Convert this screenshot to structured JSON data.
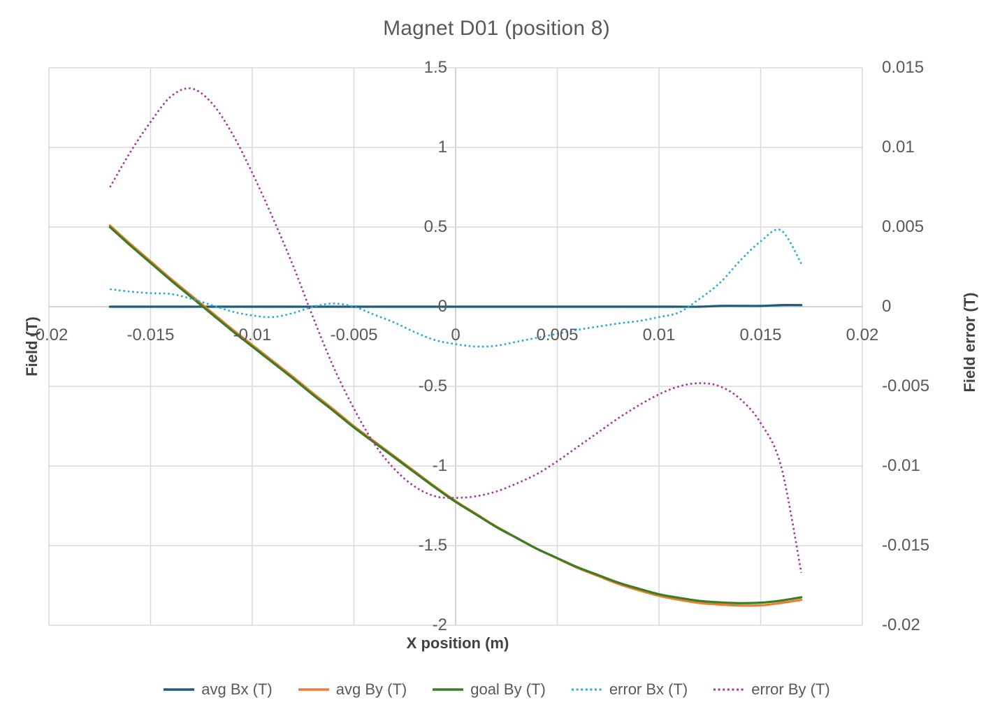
{
  "chart_data": {
    "type": "line",
    "title": "Magnet D01 (position 8)",
    "x_axis": {
      "title": "X position (m)",
      "min": -0.02,
      "max": 0.02,
      "ticks": [
        "-0.02",
        "-0.015",
        "-0.01",
        "-0.005",
        "0",
        "0.005",
        "0.01",
        "0.015",
        "0.02"
      ]
    },
    "left_axis": {
      "title": "Field (T)",
      "min": -2,
      "max": 1.5,
      "ticks": [
        "1.5",
        "1",
        "0.5",
        "0",
        "-0.5",
        "-1",
        "-1.5",
        "-2"
      ]
    },
    "right_axis": {
      "title": "Field error (T)",
      "min": -0.02,
      "max": 0.015,
      "ticks": [
        "0.015",
        "0.01",
        "0.005",
        "0",
        "-0.005",
        "-0.01",
        "-0.015",
        "-0.02"
      ]
    },
    "grid": true,
    "legend_position": "bottom",
    "colors": {
      "grid": "#D9D9D9",
      "axis": "#C6C6C6",
      "text": "#595959",
      "title": "#595959"
    },
    "x": [
      -0.017,
      -0.016,
      -0.015,
      -0.014,
      -0.013,
      -0.012,
      -0.011,
      -0.01,
      -0.009,
      -0.008,
      -0.007,
      -0.006,
      -0.005,
      -0.004,
      -0.003,
      -0.002,
      -0.001,
      0,
      0.001,
      0.002,
      0.003,
      0.004,
      0.005,
      0.006,
      0.007,
      0.008,
      0.009,
      0.01,
      0.011,
      0.012,
      0.013,
      0.014,
      0.015,
      0.016,
      0.017
    ],
    "series": [
      {
        "name": "avg Bx (T)",
        "axis": "left",
        "color": "#1F5B7D",
        "style": "solid",
        "values": [
          0,
          0,
          0,
          0,
          0,
          0,
          0,
          0,
          0,
          0,
          0,
          0,
          0,
          0,
          0,
          0,
          0,
          0,
          0,
          0,
          0,
          0,
          0,
          0,
          0,
          0,
          0,
          0,
          0,
          0,
          0.005,
          0.005,
          0.005,
          0.01,
          0.01
        ]
      },
      {
        "name": "avg By (T)",
        "axis": "left",
        "color": "#ED7D31",
        "style": "solid",
        "values": [
          0.51,
          0.395,
          0.285,
          0.175,
          0.07,
          -0.035,
          -0.14,
          -0.24,
          -0.34,
          -0.44,
          -0.545,
          -0.645,
          -0.75,
          -0.845,
          -0.94,
          -1.035,
          -1.13,
          -1.22,
          -1.3,
          -1.38,
          -1.45,
          -1.52,
          -1.58,
          -1.64,
          -1.69,
          -1.74,
          -1.78,
          -1.815,
          -1.84,
          -1.86,
          -1.87,
          -1.876,
          -1.875,
          -1.86,
          -1.84
        ]
      },
      {
        "name": "goal By (T)",
        "axis": "left",
        "color": "#3A7D23",
        "style": "solid",
        "values": [
          0.5,
          0.385,
          0.275,
          0.165,
          0.06,
          -0.045,
          -0.15,
          -0.25,
          -0.35,
          -0.45,
          -0.555,
          -0.655,
          -0.758,
          -0.853,
          -0.947,
          -1.042,
          -1.136,
          -1.225,
          -1.304,
          -1.383,
          -1.452,
          -1.52,
          -1.578,
          -1.636,
          -1.684,
          -1.732,
          -1.77,
          -1.805,
          -1.828,
          -1.847,
          -1.856,
          -1.861,
          -1.858,
          -1.845,
          -1.824
        ]
      },
      {
        "name": "error Bx (T)",
        "axis": "right",
        "color": "#29A8E0",
        "style": "dotted",
        "values": [
          0.0011,
          0.00095,
          0.00085,
          0.0008,
          0.0005,
          0.0001,
          -0.0003,
          -0.00055,
          -0.00065,
          -0.0004,
          0,
          0.0002,
          0,
          -0.0005,
          -0.001,
          -0.0016,
          -0.0021,
          -0.00235,
          -0.0025,
          -0.00245,
          -0.0022,
          -0.00195,
          -0.0017,
          -0.00145,
          -0.00125,
          -0.00105,
          -0.0009,
          -0.00065,
          -0.00035,
          0.0005,
          0.0015,
          0.0029,
          0.0041,
          0.0048,
          0.0027
        ]
      },
      {
        "name": "error By (T)",
        "axis": "right",
        "color": "#A932A5",
        "style": "dotted",
        "values": [
          0.0075,
          0.0097,
          0.0116,
          0.0132,
          0.0137,
          0.0128,
          0.0109,
          0.0084,
          0.0056,
          0.0026,
          -0.0007,
          -0.0038,
          -0.0064,
          -0.0086,
          -0.0102,
          -0.0113,
          -0.0119,
          -0.012,
          -0.0119,
          -0.0116,
          -0.0111,
          -0.0105,
          -0.0097,
          -0.0088,
          -0.0079,
          -0.007,
          -0.0062,
          -0.0055,
          -0.005,
          -0.0048,
          -0.005,
          -0.0058,
          -0.0073,
          -0.01,
          -0.0167
        ]
      }
    ]
  }
}
